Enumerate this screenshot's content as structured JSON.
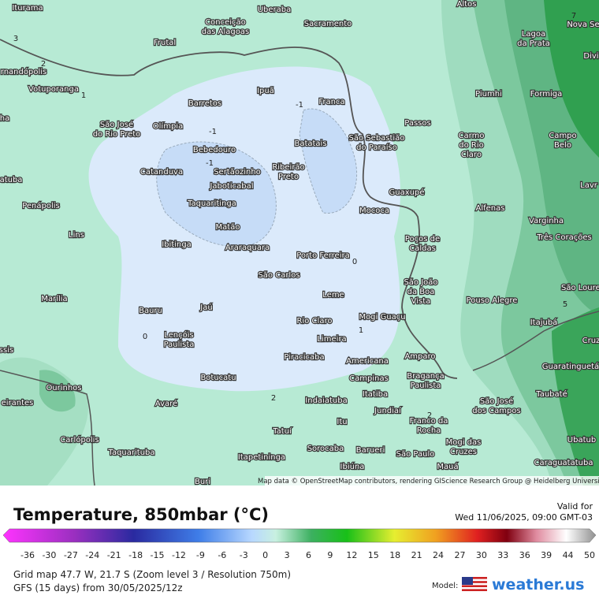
{
  "map": {
    "cities": [
      [
        "Iturama"
      ],
      [
        "Uberaba"
      ],
      [
        "Altos"
      ],
      [
        "Conceição",
        "das Alagoas"
      ],
      [
        "Sacramento"
      ],
      [
        "Nova Se"
      ],
      [
        "Lagoa",
        "da Prata"
      ],
      [
        "Frutal"
      ],
      [
        "Divi"
      ],
      [
        "rnandópolis"
      ],
      [
        "Votuporanga"
      ],
      [
        "Ipuã"
      ],
      [
        "Piumhi"
      ],
      [
        "Formiga"
      ],
      [
        "Barretos"
      ],
      [
        "Franca"
      ],
      [
        "São José",
        "do Rio Preto"
      ],
      [
        "Olímpia"
      ],
      [
        "Passos"
      ],
      [
        "Carmo",
        "do Rio",
        "Claro"
      ],
      [
        "Campo",
        "Belo"
      ],
      [
        "Bebedouro"
      ],
      [
        "Batatais"
      ],
      [
        "São Sebastião",
        "do Paraíso"
      ],
      [
        "Catanduva"
      ],
      [
        "Sertãozinho"
      ],
      [
        "Ribeirão",
        "Preto"
      ],
      [
        "Jaboticabal"
      ],
      [
        "Guaxupé"
      ],
      [
        "Lavr"
      ],
      [
        "Taquaritinga"
      ],
      [
        "Penápolis"
      ],
      [
        "Mococa"
      ],
      [
        "Alfenas"
      ],
      [
        "Varginha"
      ],
      [
        "Matão"
      ],
      [
        "Lins"
      ],
      [
        "Poços de",
        "Caldas"
      ],
      [
        "Três Corações"
      ],
      [
        "Ibitinga"
      ],
      [
        "Araraquara"
      ],
      [
        "Porto Ferreira"
      ],
      [
        "São Carlos"
      ],
      [
        "São João",
        "da Boa",
        "Vista"
      ],
      [
        "São Louren"
      ],
      [
        "Leme"
      ],
      [
        "Marília"
      ],
      [
        "Pouso Alegre"
      ],
      [
        "Bauru"
      ],
      [
        "Jaú"
      ],
      [
        "Rio Claro"
      ],
      [
        "Mogi Guaçu"
      ],
      [
        "Itajubá"
      ],
      [
        "Lençóis",
        "Paulista"
      ],
      [
        "Limeira"
      ],
      [
        "Cruz"
      ],
      [
        "Piracicaba"
      ],
      [
        "Americana"
      ],
      [
        "Amparo"
      ],
      [
        "Guaratinguetá"
      ],
      [
        "Botucatu"
      ],
      [
        "Campinas"
      ],
      [
        "Bragança",
        "Paulista"
      ],
      [
        "Ourinhos"
      ],
      [
        "Itatiba"
      ],
      [
        "Taubaté"
      ],
      [
        "Indaiatuba"
      ],
      [
        "Avaré"
      ],
      [
        "Jundiaí"
      ],
      [
        "São José",
        "dos Campos"
      ],
      [
        "Franco da",
        "Rocha"
      ],
      [
        "Itu"
      ],
      [
        "Tatuí"
      ],
      [
        "Carlópolis"
      ],
      [
        "Mogi das",
        "Cruzes"
      ],
      [
        "Ubatub"
      ],
      [
        "Sorocaba"
      ],
      [
        "Barueri"
      ],
      [
        "São Paulo"
      ],
      [
        "Taquarituba"
      ],
      [
        "Itapetininga"
      ],
      [
        "Caraguatatuba"
      ],
      [
        "Ibiúna"
      ],
      [
        "Mauá"
      ],
      [
        "Buri"
      ],
      [
        "eirantes"
      ],
      [
        "ssis"
      ],
      [
        "ha"
      ],
      [
        "atuba"
      ]
    ],
    "contour_labels": [
      "3",
      "2",
      "1",
      "-1",
      "-1",
      "-1",
      "0",
      "0",
      "1",
      "2",
      "5",
      "7",
      "2"
    ],
    "attribution": "Map data © OpenStreetMap contributors, rendering GIScience Research Group @ Heidelberg University"
  },
  "legend": {
    "title": "Temperature, 850mbar (°C)",
    "valid_label": "Valid for",
    "valid_time": "Wed 11/06/2025, 09:00 GMT-03",
    "ticks": [
      -36,
      -30,
      -27,
      -24,
      -21,
      -18,
      -15,
      -12,
      -9,
      -6,
      -3,
      0,
      3,
      6,
      9,
      12,
      15,
      18,
      21,
      24,
      27,
      30,
      33,
      36,
      39,
      44,
      50
    ]
  },
  "footer": {
    "grid": "Grid map 47.7 W, 21.7 S (Zoom level 3 / Resolution 750m)",
    "model_run": "GFS (15 days) from 30/05/2025/12z",
    "model_label": "Model:",
    "brand": "weather.us"
  }
}
